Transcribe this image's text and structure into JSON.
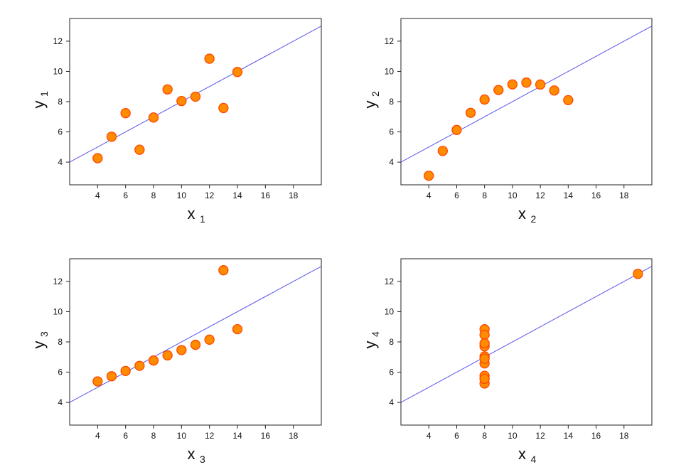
{
  "chart_data": [
    {
      "type": "scatter",
      "xlabel": "x",
      "xlabel_sub": "1",
      "ylabel": "y",
      "ylabel_sub": "1",
      "xlim": [
        2,
        20
      ],
      "ylim": [
        2.5,
        13.5
      ],
      "xticks": [
        4,
        6,
        8,
        10,
        12,
        14,
        16,
        18
      ],
      "yticks": [
        4,
        6,
        8,
        10,
        12
      ],
      "point_color": "#ff8c00",
      "point_edge": "#ff4500",
      "line_color": "#5555ee",
      "fit_line": {
        "intercept": 3.0,
        "slope": 0.5
      },
      "points": [
        {
          "x": 10,
          "y": 8.04
        },
        {
          "x": 8,
          "y": 6.95
        },
        {
          "x": 13,
          "y": 7.58
        },
        {
          "x": 9,
          "y": 8.81
        },
        {
          "x": 11,
          "y": 8.33
        },
        {
          "x": 14,
          "y": 9.96
        },
        {
          "x": 6,
          "y": 7.24
        },
        {
          "x": 4,
          "y": 4.26
        },
        {
          "x": 12,
          "y": 10.84
        },
        {
          "x": 7,
          "y": 4.82
        },
        {
          "x": 5,
          "y": 5.68
        }
      ]
    },
    {
      "type": "scatter",
      "xlabel": "x",
      "xlabel_sub": "2",
      "ylabel": "y",
      "ylabel_sub": "2",
      "xlim": [
        2,
        20
      ],
      "ylim": [
        2.5,
        13.5
      ],
      "xticks": [
        4,
        6,
        8,
        10,
        12,
        14,
        16,
        18
      ],
      "yticks": [
        4,
        6,
        8,
        10,
        12
      ],
      "point_color": "#ff8c00",
      "point_edge": "#ff4500",
      "line_color": "#5555ee",
      "fit_line": {
        "intercept": 3.0,
        "slope": 0.5
      },
      "points": [
        {
          "x": 10,
          "y": 9.14
        },
        {
          "x": 8,
          "y": 8.14
        },
        {
          "x": 13,
          "y": 8.74
        },
        {
          "x": 9,
          "y": 8.77
        },
        {
          "x": 11,
          "y": 9.26
        },
        {
          "x": 14,
          "y": 8.1
        },
        {
          "x": 6,
          "y": 6.13
        },
        {
          "x": 4,
          "y": 3.1
        },
        {
          "x": 12,
          "y": 9.13
        },
        {
          "x": 7,
          "y": 7.26
        },
        {
          "x": 5,
          "y": 4.74
        }
      ]
    },
    {
      "type": "scatter",
      "xlabel": "x",
      "xlabel_sub": "3",
      "ylabel": "y",
      "ylabel_sub": "3",
      "xlim": [
        2,
        20
      ],
      "ylim": [
        2.5,
        13.5
      ],
      "xticks": [
        4,
        6,
        8,
        10,
        12,
        14,
        16,
        18
      ],
      "yticks": [
        4,
        6,
        8,
        10,
        12
      ],
      "point_color": "#ff8c00",
      "point_edge": "#ff4500",
      "line_color": "#5555ee",
      "fit_line": {
        "intercept": 3.0,
        "slope": 0.5
      },
      "points": [
        {
          "x": 10,
          "y": 7.46
        },
        {
          "x": 8,
          "y": 6.77
        },
        {
          "x": 13,
          "y": 12.74
        },
        {
          "x": 9,
          "y": 7.11
        },
        {
          "x": 11,
          "y": 7.81
        },
        {
          "x": 14,
          "y": 8.84
        },
        {
          "x": 6,
          "y": 6.08
        },
        {
          "x": 4,
          "y": 5.39
        },
        {
          "x": 12,
          "y": 8.15
        },
        {
          "x": 7,
          "y": 6.42
        },
        {
          "x": 5,
          "y": 5.73
        }
      ]
    },
    {
      "type": "scatter",
      "xlabel": "x",
      "xlabel_sub": "4",
      "ylabel": "y",
      "ylabel_sub": "4",
      "xlim": [
        2,
        20
      ],
      "ylim": [
        2.5,
        13.5
      ],
      "xticks": [
        4,
        6,
        8,
        10,
        12,
        14,
        16,
        18
      ],
      "yticks": [
        4,
        6,
        8,
        10,
        12
      ],
      "point_color": "#ff8c00",
      "point_edge": "#ff4500",
      "line_color": "#5555ee",
      "fit_line": {
        "intercept": 3.0,
        "slope": 0.5
      },
      "points": [
        {
          "x": 8,
          "y": 6.58
        },
        {
          "x": 8,
          "y": 5.76
        },
        {
          "x": 8,
          "y": 7.71
        },
        {
          "x": 8,
          "y": 8.84
        },
        {
          "x": 8,
          "y": 8.47
        },
        {
          "x": 8,
          "y": 7.04
        },
        {
          "x": 8,
          "y": 5.25
        },
        {
          "x": 19,
          "y": 12.5
        },
        {
          "x": 8,
          "y": 5.56
        },
        {
          "x": 8,
          "y": 7.91
        },
        {
          "x": 8,
          "y": 6.89
        }
      ]
    }
  ]
}
